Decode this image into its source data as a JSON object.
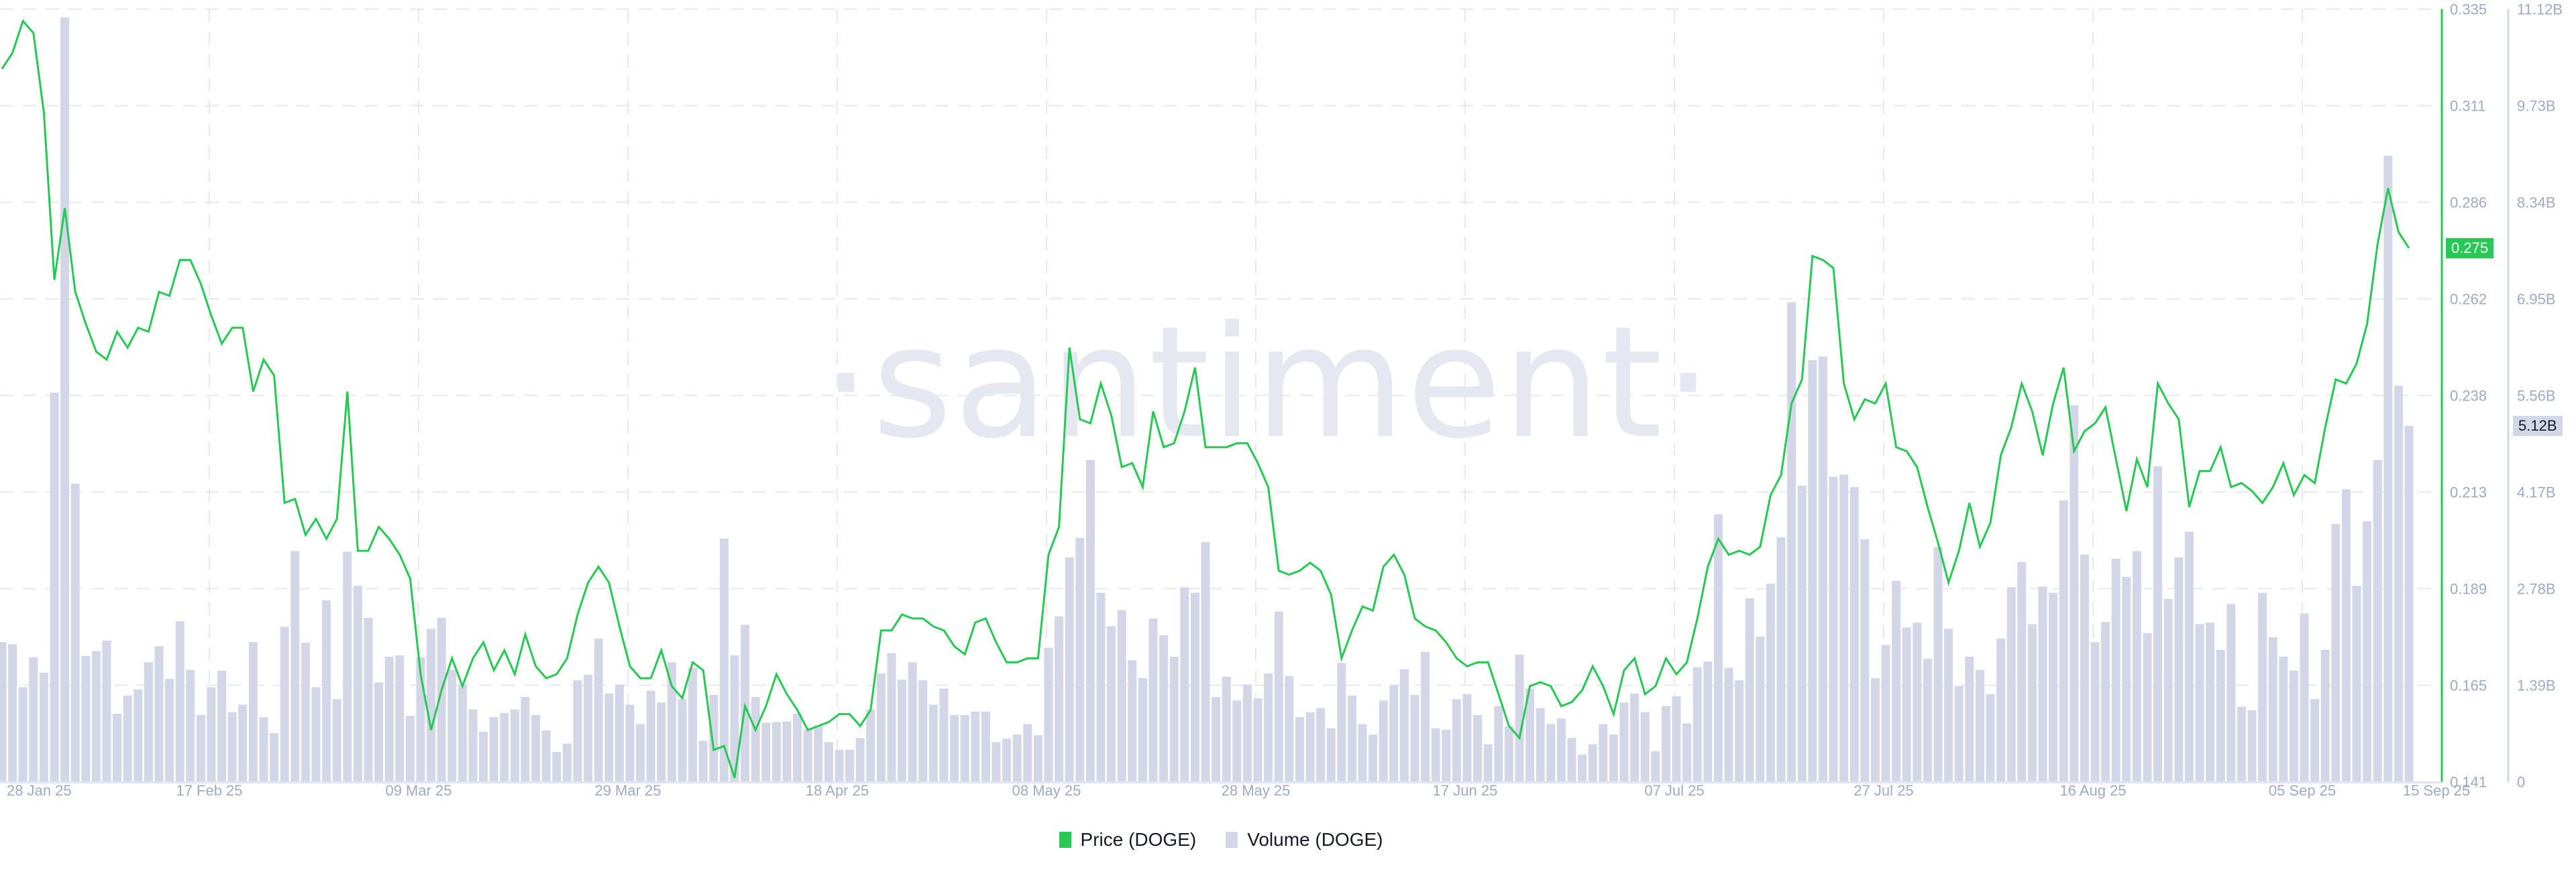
{
  "chart_data": {
    "type": "bar+line",
    "title": "",
    "watermark": "santiment",
    "xlabel": "",
    "x_tick_labels": [
      "28 Jan 25",
      "17 Feb 25",
      "09 Mar 25",
      "29 Mar 25",
      "18 Apr 25",
      "08 May 25",
      "28 May 25",
      "17 Jun 25",
      "07 Jul 25",
      "27 Jul 25",
      "16 Aug 25",
      "05 Sep 25",
      "15 Sep 25"
    ],
    "x_start": "28 Jan 25",
    "x_end": "15 Sep 25",
    "interval": "1d",
    "grid": true,
    "legend_position": "bottom-center",
    "y_axes": {
      "price": {
        "label": "Price (DOGE)",
        "side": "right",
        "ylim": [
          0.141,
          0.335
        ],
        "ticks": [
          "0.335",
          "0.311",
          "0.286",
          "0.262",
          "0.238",
          "0.213",
          "0.189",
          "0.165",
          "0.141"
        ],
        "current_value": "0.275",
        "color": "#26c953"
      },
      "volume": {
        "label": "Volume (DOGE)",
        "side": "right",
        "ylim": [
          0,
          11.12
        ],
        "ticks": [
          "11.12B",
          "9.73B",
          "8.34B",
          "6.95B",
          "5.56B",
          "4.17B",
          "2.78B",
          "1.39B",
          "0"
        ],
        "current_value": "5.12B",
        "color": "#d2d6e6"
      }
    },
    "series": [
      {
        "name": "Price (DOGE)",
        "type": "line",
        "axis": "price",
        "color": "#26c953",
        "values": [
          0.32,
          0.324,
          0.332,
          0.329,
          0.309,
          0.267,
          0.285,
          0.264,
          0.256,
          0.249,
          0.247,
          0.254,
          0.25,
          0.255,
          0.254,
          0.264,
          0.263,
          0.272,
          0.272,
          0.266,
          0.258,
          0.251,
          0.255,
          0.255,
          0.239,
          0.247,
          0.243,
          0.211,
          0.212,
          0.203,
          0.207,
          0.202,
          0.207,
          0.239,
          0.199,
          0.199,
          0.205,
          0.202,
          0.198,
          0.192,
          0.168,
          0.154,
          0.164,
          0.172,
          0.165,
          0.172,
          0.176,
          0.169,
          0.174,
          0.168,
          0.178,
          0.17,
          0.167,
          0.168,
          0.172,
          0.183,
          0.191,
          0.195,
          0.191,
          0.18,
          0.17,
          0.167,
          0.167,
          0.174,
          0.165,
          0.162,
          0.171,
          0.169,
          0.149,
          0.15,
          0.142,
          0.16,
          0.154,
          0.16,
          0.168,
          0.163,
          0.159,
          0.154,
          0.155,
          0.156,
          0.158,
          0.158,
          0.155,
          0.159,
          0.179,
          0.179,
          0.183,
          0.182,
          0.182,
          0.18,
          0.179,
          0.175,
          0.173,
          0.181,
          0.182,
          0.176,
          0.171,
          0.171,
          0.172,
          0.172,
          0.198,
          0.205,
          0.25,
          0.232,
          0.231,
          0.241,
          0.233,
          0.22,
          0.221,
          0.215,
          0.234,
          0.225,
          0.226,
          0.234,
          0.245,
          0.225,
          0.225,
          0.225,
          0.226,
          0.226,
          0.221,
          0.215,
          0.194,
          0.193,
          0.194,
          0.196,
          0.194,
          0.188,
          0.172,
          0.179,
          0.185,
          0.184,
          0.195,
          0.198,
          0.193,
          0.182,
          0.18,
          0.179,
          0.176,
          0.172,
          0.17,
          0.171,
          0.171,
          0.163,
          0.155,
          0.152,
          0.165,
          0.166,
          0.165,
          0.16,
          0.161,
          0.164,
          0.17,
          0.165,
          0.158,
          0.169,
          0.172,
          0.163,
          0.165,
          0.172,
          0.168,
          0.171,
          0.182,
          0.195,
          0.202,
          0.198,
          0.199,
          0.198,
          0.2,
          0.213,
          0.218,
          0.236,
          0.242,
          0.273,
          0.272,
          0.27,
          0.241,
          0.232,
          0.237,
          0.236,
          0.241,
          0.225,
          0.224,
          0.22,
          0.21,
          0.201,
          0.191,
          0.199,
          0.211,
          0.2,
          0.206,
          0.223,
          0.23,
          0.241,
          0.234,
          0.223,
          0.236,
          0.245,
          0.224,
          0.229,
          0.231,
          0.235,
          0.222,
          0.209,
          0.222,
          0.215,
          0.241,
          0.236,
          0.232,
          0.21,
          0.219,
          0.219,
          0.225,
          0.215,
          0.216,
          0.214,
          0.211,
          0.215,
          0.221,
          0.213,
          0.218,
          0.216,
          0.23,
          0.242,
          0.241,
          0.246,
          0.256,
          0.276,
          0.29,
          0.279,
          0.275
        ]
      },
      {
        "name": "Volume (DOGE)",
        "type": "bar",
        "axis": "volume",
        "unit": "B",
        "color": "#d2d6e6",
        "values": [
          2.01,
          1.98,
          1.36,
          1.79,
          1.57,
          5.6,
          11.0,
          4.29,
          1.81,
          1.88,
          2.03,
          0.98,
          1.24,
          1.33,
          1.72,
          1.95,
          1.48,
          2.31,
          1.61,
          0.96,
          1.36,
          1.6,
          1.0,
          1.11,
          2.01,
          0.93,
          0.7,
          2.23,
          3.32,
          2.0,
          1.36,
          2.61,
          1.19,
          3.31,
          2.82,
          2.36,
          1.43,
          1.8,
          1.82,
          0.95,
          1.79,
          2.2,
          2.36,
          1.61,
          1.4,
          1.04,
          0.72,
          0.93,
          0.99,
          1.04,
          1.22,
          0.96,
          0.74,
          0.43,
          0.55,
          1.46,
          1.54,
          2.06,
          1.27,
          1.4,
          1.11,
          0.83,
          1.31,
          1.14,
          1.72,
          1.19,
          1.64,
          0.59,
          1.25,
          3.5,
          1.82,
          2.26,
          1.22,
          0.85,
          0.86,
          0.87,
          0.98,
          0.75,
          0.81,
          0.57,
          0.46,
          0.46,
          0.63,
          1.04,
          1.56,
          1.85,
          1.47,
          1.72,
          1.46,
          1.11,
          1.34,
          0.96,
          0.96,
          1.01,
          1.01,
          0.57,
          0.62,
          0.68,
          0.83,
          0.67,
          1.93,
          2.38,
          3.23,
          3.51,
          4.63,
          2.72,
          2.24,
          2.47,
          1.75,
          1.49,
          2.35,
          2.11,
          1.8,
          2.8,
          2.72,
          3.45,
          1.22,
          1.51,
          1.17,
          1.4,
          1.2,
          1.56,
          2.45,
          1.52,
          0.93,
          1.0,
          1.06,
          0.77,
          1.71,
          1.24,
          0.83,
          0.68,
          1.17,
          1.39,
          1.62,
          1.25,
          1.87,
          0.77,
          0.75,
          1.19,
          1.26,
          0.96,
          0.54,
          1.09,
          0.8,
          1.83,
          1.34,
          1.06,
          0.83,
          0.91,
          0.63,
          0.39,
          0.54,
          0.83,
          0.68,
          1.14,
          1.27,
          1.0,
          0.44,
          1.09,
          1.23,
          0.84,
          1.65,
          1.73,
          3.85,
          1.64,
          1.46,
          2.64,
          2.09,
          2.85,
          3.52,
          6.9,
          4.26,
          6.07,
          6.12,
          4.39,
          4.42,
          4.24,
          3.49,
          1.49,
          1.97,
          2.89,
          2.22,
          2.29,
          1.77,
          3.38,
          2.2,
          1.38,
          1.8,
          1.61,
          1.26,
          2.06,
          2.8,
          3.16,
          2.27,
          2.81,
          2.72,
          4.05,
          5.42,
          3.27,
          2.01,
          2.3,
          3.21,
          2.95,
          3.32,
          2.14,
          4.54,
          2.63,
          3.23,
          3.6,
          2.27,
          2.29,
          1.9,
          2.56,
          1.08,
          1.03,
          2.72,
          2.08,
          1.8,
          1.6,
          2.42,
          1.19,
          1.9,
          3.71,
          4.21,
          2.82,
          3.75,
          4.63,
          9.01,
          5.7,
          5.12
        ]
      }
    ]
  },
  "legend": {
    "items": [
      {
        "label": "Price (DOGE)",
        "color": "#26c953"
      },
      {
        "label": "Volume (DOGE)",
        "color": "#d2d6e6"
      }
    ]
  },
  "badges": {
    "price": "0.275",
    "volume": "5.12B"
  },
  "watermark": "·santiment·"
}
